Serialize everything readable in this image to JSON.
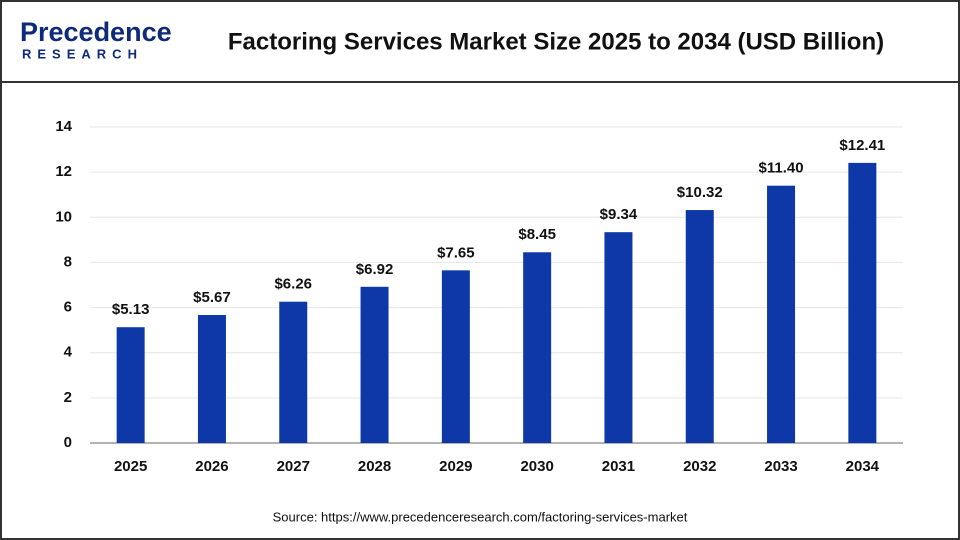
{
  "logo": {
    "name": "Precedence",
    "tagline": "RESEARCH"
  },
  "chart_data": {
    "type": "bar",
    "title": "Factoring Services Market Size 2025 to 2034 (USD Billion)",
    "categories": [
      "2025",
      "2026",
      "2027",
      "2028",
      "2029",
      "2030",
      "2031",
      "2032",
      "2033",
      "2034"
    ],
    "values": [
      5.13,
      5.67,
      6.26,
      6.92,
      7.65,
      8.45,
      9.34,
      10.32,
      11.4,
      12.41
    ],
    "value_labels": [
      "$5.13",
      "$5.67",
      "$6.26",
      "$6.92",
      "$7.65",
      "$8.45",
      "$9.34",
      "$10.32",
      "$11.40",
      "$12.41"
    ],
    "color": "#0e38a8",
    "ylim": [
      0,
      14
    ],
    "yticks": [
      0,
      2,
      4,
      6,
      8,
      10,
      12,
      14
    ],
    "grid": true,
    "source": "Source: https://www.precedenceresearch.com/factoring-services-market"
  }
}
